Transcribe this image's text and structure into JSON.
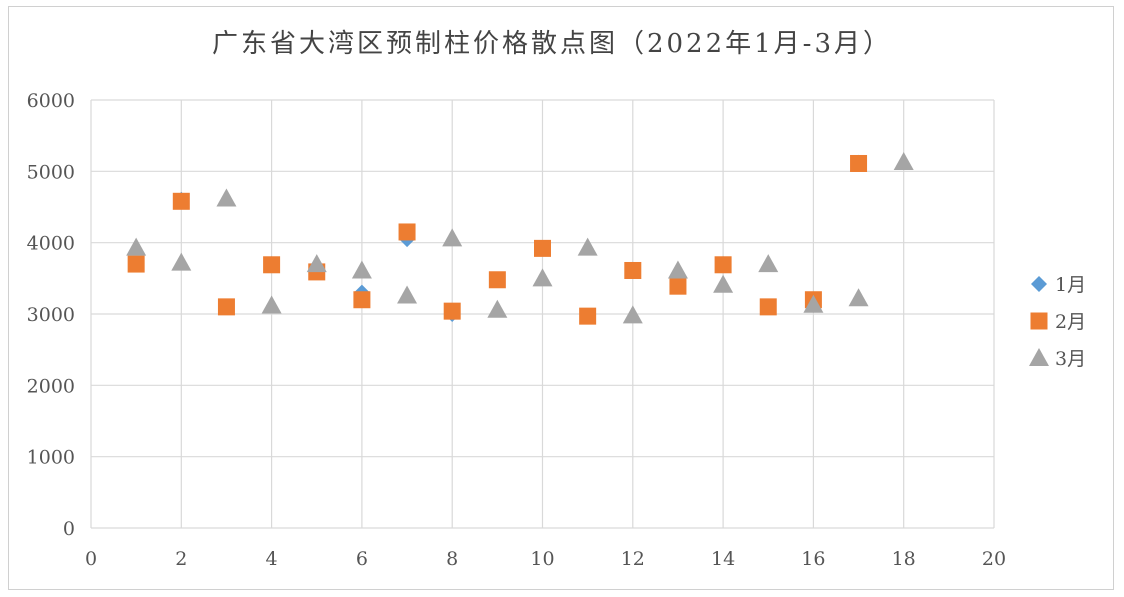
{
  "chart_data": {
    "type": "scatter",
    "title": "广东省大湾区预制柱价格散点图（2022年1月-3月）",
    "xlim": [
      0,
      20
    ],
    "ylim": [
      0,
      6000
    ],
    "x_ticks": [
      0,
      2,
      4,
      6,
      8,
      10,
      12,
      14,
      16,
      18,
      20
    ],
    "y_ticks": [
      0,
      1000,
      2000,
      3000,
      4000,
      5000,
      6000
    ],
    "grid": true,
    "legend_position": "right",
    "series": [
      {
        "name": "1月",
        "marker": "diamond",
        "color": "#5B9BD5",
        "x": [
          1,
          2,
          3,
          4,
          5,
          6,
          7,
          8,
          9,
          10,
          11,
          12,
          13,
          14,
          15,
          16,
          17
        ],
        "y": [
          3700,
          4600,
          3100,
          3700,
          3600,
          3300,
          4050,
          3000,
          3480,
          3920,
          2970,
          3620,
          3400,
          3700,
          3100,
          3200,
          5120
        ]
      },
      {
        "name": "2月",
        "marker": "square",
        "color": "#ED7D31",
        "x": [
          1,
          2,
          3,
          4,
          5,
          6,
          7,
          8,
          9,
          10,
          11,
          12,
          13,
          14,
          15,
          16,
          17
        ],
        "y": [
          3700,
          4580,
          3100,
          3690,
          3590,
          3200,
          4150,
          3040,
          3480,
          3920,
          2970,
          3610,
          3390,
          3690,
          3100,
          3200,
          5110
        ]
      },
      {
        "name": "3月",
        "marker": "triangle",
        "color": "#A5A5A5",
        "x": [
          1,
          2,
          3,
          4,
          5,
          6,
          7,
          8,
          9,
          10,
          11,
          12,
          13,
          14,
          15,
          16,
          17,
          18
        ],
        "y": [
          3930,
          3720,
          4620,
          3120,
          3700,
          3610,
          3260,
          4060,
          3060,
          3500,
          3930,
          2980,
          3610,
          3410,
          3700,
          3130,
          3220,
          5130
        ]
      }
    ]
  }
}
